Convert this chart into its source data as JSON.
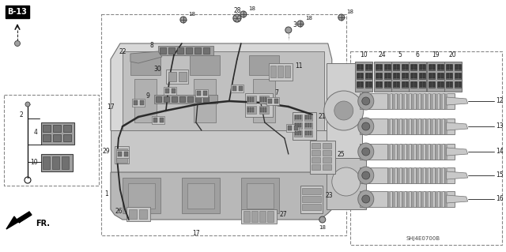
{
  "bg": "#ffffff",
  "lc": "#1a1a1a",
  "gray1": "#c8c8c8",
  "gray2": "#a0a0a0",
  "gray3": "#707070",
  "gray4": "#404040",
  "diagram_id": "SHJ4E0700B",
  "conn_labels": [
    "10",
    "24",
    "5",
    "6",
    "19",
    "20"
  ],
  "coil_labels": [
    "12",
    "13",
    "14",
    "15",
    "16"
  ],
  "figw": 6.4,
  "figh": 3.19,
  "dpi": 100
}
